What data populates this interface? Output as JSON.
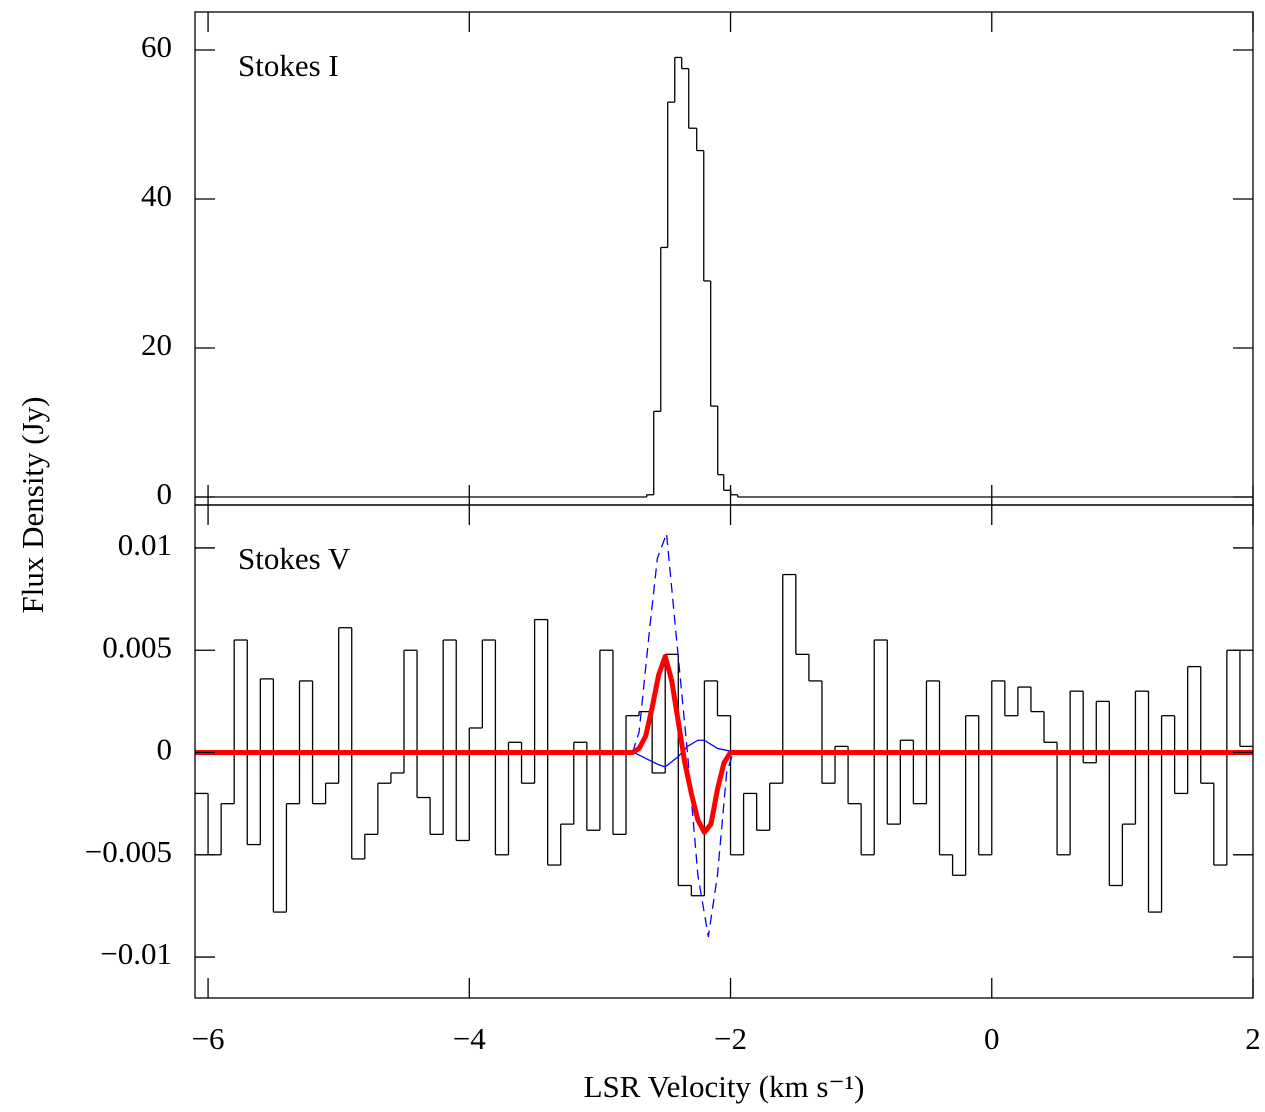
{
  "chart_data": [
    {
      "type": "step",
      "annotation": "Stokes I",
      "y_label": "Flux Density (Jy)",
      "xlim": [
        -6.1,
        2.0
      ],
      "ylim": [
        -1.07,
        65.1
      ],
      "xticks": [
        -6,
        -4,
        -2,
        0,
        2
      ],
      "xtick_labels": false,
      "yticks": [
        0,
        20,
        40,
        60
      ],
      "series": [
        {
          "color": "#000000",
          "step": "post",
          "width": 1.3,
          "x": [
            -6.1,
            -2.642,
            -2.588,
            -2.534,
            -2.481,
            -2.427,
            -2.374,
            -2.32,
            -2.259,
            -2.205,
            -2.152,
            -2.098,
            -2.052,
            -1.998,
            -1.945
          ],
          "values": [
            0,
            0.3,
            11.5,
            33.5,
            53,
            59,
            57.5,
            49.5,
            46.5,
            29,
            12.2,
            3,
            0.9,
            0.3,
            0
          ]
        }
      ]
    },
    {
      "type": "step",
      "annotation": "Stokes V",
      "x_label": "LSR Velocity (km s⁻¹)",
      "xlim": [
        -6.1,
        2.0
      ],
      "ylim": [
        -0.012,
        0.0121
      ],
      "xticks": [
        {
          "value": -6,
          "label": "−6"
        },
        {
          "value": -4,
          "label": "−4"
        },
        {
          "value": -2,
          "label": "−2"
        },
        0,
        2
      ],
      "xtick_labels": true,
      "yticks": [
        {
          "value": -0.01,
          "label": "−0.01"
        },
        {
          "value": -0.005,
          "label": "−0.005"
        },
        0,
        0.005,
        0.01
      ],
      "series": [
        {
          "color": "#000000",
          "step": "mid",
          "width": 1.3,
          "x": [
            -6.05,
            -5.95,
            -5.85,
            -5.75,
            -5.65,
            -5.55,
            -5.45,
            -5.35,
            -5.25,
            -5.15,
            -5.05,
            -4.95,
            -4.85,
            -4.75,
            -4.65,
            -4.55,
            -4.45,
            -4.35,
            -4.25,
            -4.15,
            -4.05,
            -3.95,
            -3.85,
            -3.75,
            -3.65,
            -3.55,
            -3.45,
            -3.35,
            -3.25,
            -3.15,
            -3.05,
            -2.95,
            -2.85,
            -2.75,
            -2.65,
            -2.55,
            -2.45,
            -2.35,
            -2.25,
            -2.15,
            -2.05,
            -1.95,
            -1.85,
            -1.75,
            -1.65,
            -1.55,
            -1.45,
            -1.35,
            -1.25,
            -1.15,
            -1.05,
            -0.95,
            -0.85,
            -0.75,
            -0.65,
            -0.55,
            -0.45,
            -0.35,
            -0.25,
            -0.15,
            -0.05,
            0.05,
            0.15,
            0.25,
            0.35,
            0.45,
            0.55,
            0.65,
            0.75,
            0.85,
            0.95,
            1.05,
            1.15,
            1.25,
            1.35,
            1.45,
            1.55,
            1.65,
            1.75,
            1.85,
            1.95
          ],
          "values": [
            -0.002,
            -0.005,
            -0.0025,
            0.0055,
            -0.0045,
            0.0036,
            -0.0078,
            -0.0025,
            0.0035,
            -0.0025,
            -0.0015,
            0.0061,
            -0.0052,
            -0.004,
            -0.0015,
            -0.001,
            0.005,
            -0.0022,
            -0.004,
            0.0055,
            -0.0043,
            0.0012,
            0.0055,
            -0.005,
            0.0005,
            -0.0015,
            0.0065,
            -0.0055,
            -0.0035,
            0.0005,
            -0.0038,
            0.005,
            -0.004,
            0.0018,
            0.002,
            -0.001,
            0.0048,
            -0.0065,
            -0.007,
            0.0035,
            0.0018,
            -0.005,
            -0.002,
            -0.0038,
            -0.0015,
            0.0087,
            0.0048,
            0.0035,
            -0.0015,
            0.0003,
            -0.0025,
            -0.005,
            0.0055,
            -0.0035,
            0.0006,
            -0.0025,
            0.0035,
            -0.005,
            -0.006,
            0.0018,
            -0.005,
            0.0035,
            0.0018,
            0.0032,
            0.002,
            0.0005,
            -0.005,
            0.003,
            -0.0005,
            0.0025,
            -0.0065,
            -0.0035,
            0.003,
            -0.0078,
            0.0018,
            -0.002,
            0.0042,
            -0.0015,
            -0.0055,
            0.005,
            0.0003
          ]
        },
        {
          "color": "#0000ff",
          "width": 1.3,
          "dash": true,
          "x": [
            -2.75,
            -2.7,
            -2.62,
            -2.56,
            -2.49,
            -2.42,
            -2.33,
            -2.25,
            -2.17,
            -2.1,
            -2.03,
            -1.98
          ],
          "values": [
            0,
            0.001,
            0.006,
            0.0095,
            0.0107,
            0.006,
            0,
            -0.006,
            -0.009,
            -0.006,
            -0.001,
            0
          ]
        },
        {
          "color": "#0000ff",
          "width": 1.3,
          "x": [
            -2.74,
            -2.55,
            -2.5,
            -2.4,
            -2.33,
            -2.25,
            -2.2,
            -2.1,
            -1.95
          ],
          "values": [
            0,
            -0.0006,
            -0.0007,
            -0.0002,
            0.0003,
            0.0006,
            0.0006,
            0.0002,
            0
          ]
        },
        {
          "color": "#ff0000",
          "width": 5,
          "x": [
            -6.1,
            -2.75,
            -2.7,
            -2.65,
            -2.6,
            -2.55,
            -2.5,
            -2.45,
            -2.4,
            -2.35,
            -2.3,
            -2.25,
            -2.2,
            -2.15,
            -2.1,
            -2.05,
            -2.0,
            2.0
          ],
          "values": [
            0,
            0,
            0.0002,
            0.0008,
            0.0022,
            0.0038,
            0.0047,
            0.0035,
            0.0015,
            -0.0005,
            -0.002,
            -0.0033,
            -0.0039,
            -0.0035,
            -0.0018,
            -0.0005,
            0,
            0
          ]
        }
      ]
    }
  ]
}
